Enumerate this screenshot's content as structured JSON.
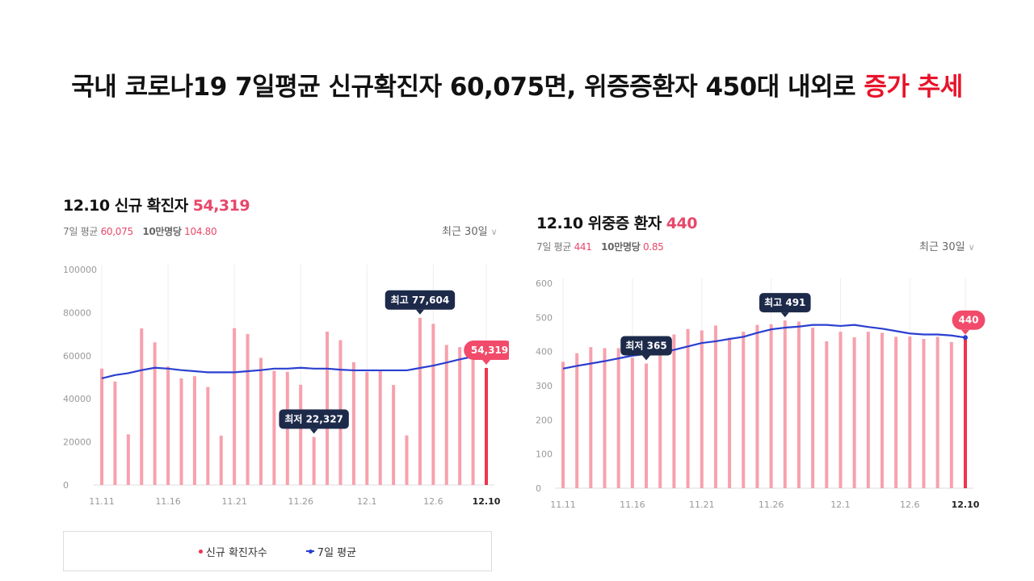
{
  "headline": {
    "main": "국내 코로나19 7일평균 신규확진자 60,075면, 위증증환자 450대 내외로 ",
    "highlight": "증가 추세"
  },
  "colors": {
    "bar": "#f7a1ad",
    "bar_last": "#f0334f",
    "avg_line": "#2a3fd0",
    "callout_dark": "#1d2a4a",
    "callout_red": "#f24a6a",
    "accent_text": "#e8476a"
  },
  "left": {
    "date": "12.10",
    "title": "신규 확진자",
    "value": "54,319",
    "avg_label": "7일 평균",
    "avg_value": "60,075",
    "per100k_label": "10만명당",
    "per100k_value": "104.80",
    "period": "최근 30일",
    "period_icon": "chevron-down-icon",
    "legend": {
      "bar": "신규 확진자수",
      "line": "7일 평균"
    }
  },
  "right": {
    "date": "12.10",
    "title": "위중증 환자",
    "value": "440",
    "avg_label": "7일 평균",
    "avg_value": "441",
    "per100k_label": "10만명당",
    "per100k_value": "0.85",
    "period": "최근 30일",
    "period_icon": "chevron-down-icon"
  },
  "chart_data": [
    {
      "type": "bar",
      "title": "12.10 신규 확진자 54,319",
      "x": [
        "11.11",
        "11.12",
        "11.13",
        "11.14",
        "11.15",
        "11.16",
        "11.17",
        "11.18",
        "11.19",
        "11.20",
        "11.21",
        "11.22",
        "11.23",
        "11.24",
        "11.25",
        "11.26",
        "11.27",
        "11.28",
        "11.29",
        "11.30",
        "12.1",
        "12.2",
        "12.3",
        "12.4",
        "12.5",
        "12.6",
        "12.7",
        "12.8",
        "12.9",
        "12.10"
      ],
      "x_tick_labels": [
        "11.11",
        "11.16",
        "11.21",
        "11.26",
        "12.1",
        "12.6",
        "12.10"
      ],
      "y_ticks": [
        "0",
        "20000",
        "40000",
        "60000",
        "80000",
        "100000"
      ],
      "ylim": [
        0,
        100000
      ],
      "series": [
        {
          "name": "신규 확진자수",
          "kind": "bar",
          "values": [
            54000,
            48000,
            23500,
            72700,
            66200,
            55000,
            49500,
            50500,
            45500,
            22900,
            72800,
            70100,
            59000,
            53000,
            52500,
            46500,
            22327,
            71200,
            67200,
            57000,
            52500,
            53000,
            46400,
            23000,
            77604,
            74800,
            65000,
            64000,
            61000,
            54319
          ]
        },
        {
          "name": "7일 평균",
          "kind": "line",
          "values": [
            49500,
            51000,
            51900,
            53300,
            54400,
            54000,
            53300,
            52800,
            52300,
            52300,
            52300,
            52800,
            53300,
            54000,
            54000,
            54400,
            54000,
            54000,
            53500,
            53200,
            53200,
            53200,
            53200,
            53200,
            54300,
            55400,
            56800,
            58300,
            59600,
            60075
          ]
        }
      ],
      "annotations": [
        {
          "label": "최고 77,604",
          "index": 24,
          "style": "dark"
        },
        {
          "label": "최저 22,327",
          "index": 16,
          "style": "dark"
        },
        {
          "label": "54,319",
          "index": 29,
          "style": "red"
        }
      ],
      "grid": "vertical"
    },
    {
      "type": "bar",
      "title": "12.10 위중증 환자 440",
      "x": [
        "11.11",
        "11.12",
        "11.13",
        "11.14",
        "11.15",
        "11.16",
        "11.17",
        "11.18",
        "11.19",
        "11.20",
        "11.21",
        "11.22",
        "11.23",
        "11.24",
        "11.25",
        "11.26",
        "11.27",
        "11.28",
        "11.29",
        "11.30",
        "12.1",
        "12.2",
        "12.3",
        "12.4",
        "12.5",
        "12.6",
        "12.7",
        "12.8",
        "12.9",
        "12.10"
      ],
      "x_tick_labels": [
        "11.11",
        "11.16",
        "11.21",
        "11.26",
        "12.1",
        "12.6",
        "12.10"
      ],
      "y_ticks": [
        "0",
        "100",
        "200",
        "300",
        "400",
        "500",
        "600"
      ],
      "ylim": [
        0,
        600
      ],
      "series": [
        {
          "name": "위중증 환자",
          "kind": "bar",
          "values": [
            370,
            395,
            413,
            410,
            410,
            382,
            365,
            405,
            450,
            466,
            462,
            476,
            440,
            458,
            478,
            480,
            491,
            488,
            470,
            430,
            458,
            442,
            458,
            455,
            443,
            444,
            437,
            443,
            428,
            440
          ]
        },
        {
          "name": "7일 평균",
          "kind": "line",
          "values": [
            350,
            358,
            365,
            372,
            380,
            388,
            393,
            397,
            405,
            415,
            425,
            430,
            437,
            443,
            455,
            465,
            470,
            473,
            478,
            478,
            475,
            478,
            472,
            467,
            460,
            453,
            450,
            450,
            447,
            441
          ]
        }
      ],
      "annotations": [
        {
          "label": "최고 491",
          "index": 16,
          "style": "dark"
        },
        {
          "label": "최저 365",
          "index": 6,
          "style": "dark"
        },
        {
          "label": "440",
          "index": 29,
          "style": "red"
        }
      ],
      "grid": "vertical"
    }
  ]
}
